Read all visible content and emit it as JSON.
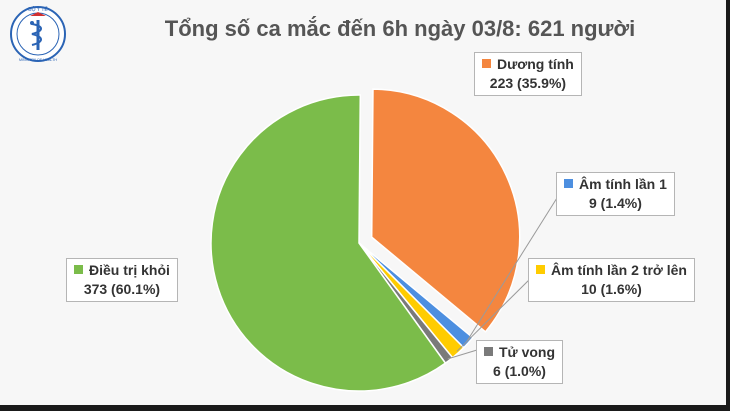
{
  "title": "Tổng số ca mắc đến 6h ngày 03/8: 621 người",
  "logo": {
    "top_text": "BỘ Y TẾ",
    "bottom_text": "MINISTRY OF HEALTH"
  },
  "chart_data": {
    "type": "pie",
    "title": "Tổng số ca mắc đến 6h ngày 03/8: 621 người",
    "total": 621,
    "slices": [
      {
        "name": "Dương tính",
        "value": 223,
        "percent_label": "223 (35.9%)",
        "color": "#f4863f",
        "exploded": true
      },
      {
        "name": "Âm tính lần 1",
        "value": 9,
        "percent_label": "9 (1.4%)",
        "color": "#4d8fe0",
        "exploded": false
      },
      {
        "name": "Âm tính lần 2 trở lên",
        "value": 10,
        "percent_label": "10 (1.6%)",
        "color": "#ffcc00",
        "exploded": false
      },
      {
        "name": "Tử vong",
        "value": 6,
        "percent_label": "6 (1.0%)",
        "color": "#7a7a7a",
        "exploded": false
      },
      {
        "name": "Điều trị khỏi",
        "value": 373,
        "percent_label": "373 (60.1%)",
        "color": "#7bbc4a",
        "exploded": false
      }
    ]
  }
}
